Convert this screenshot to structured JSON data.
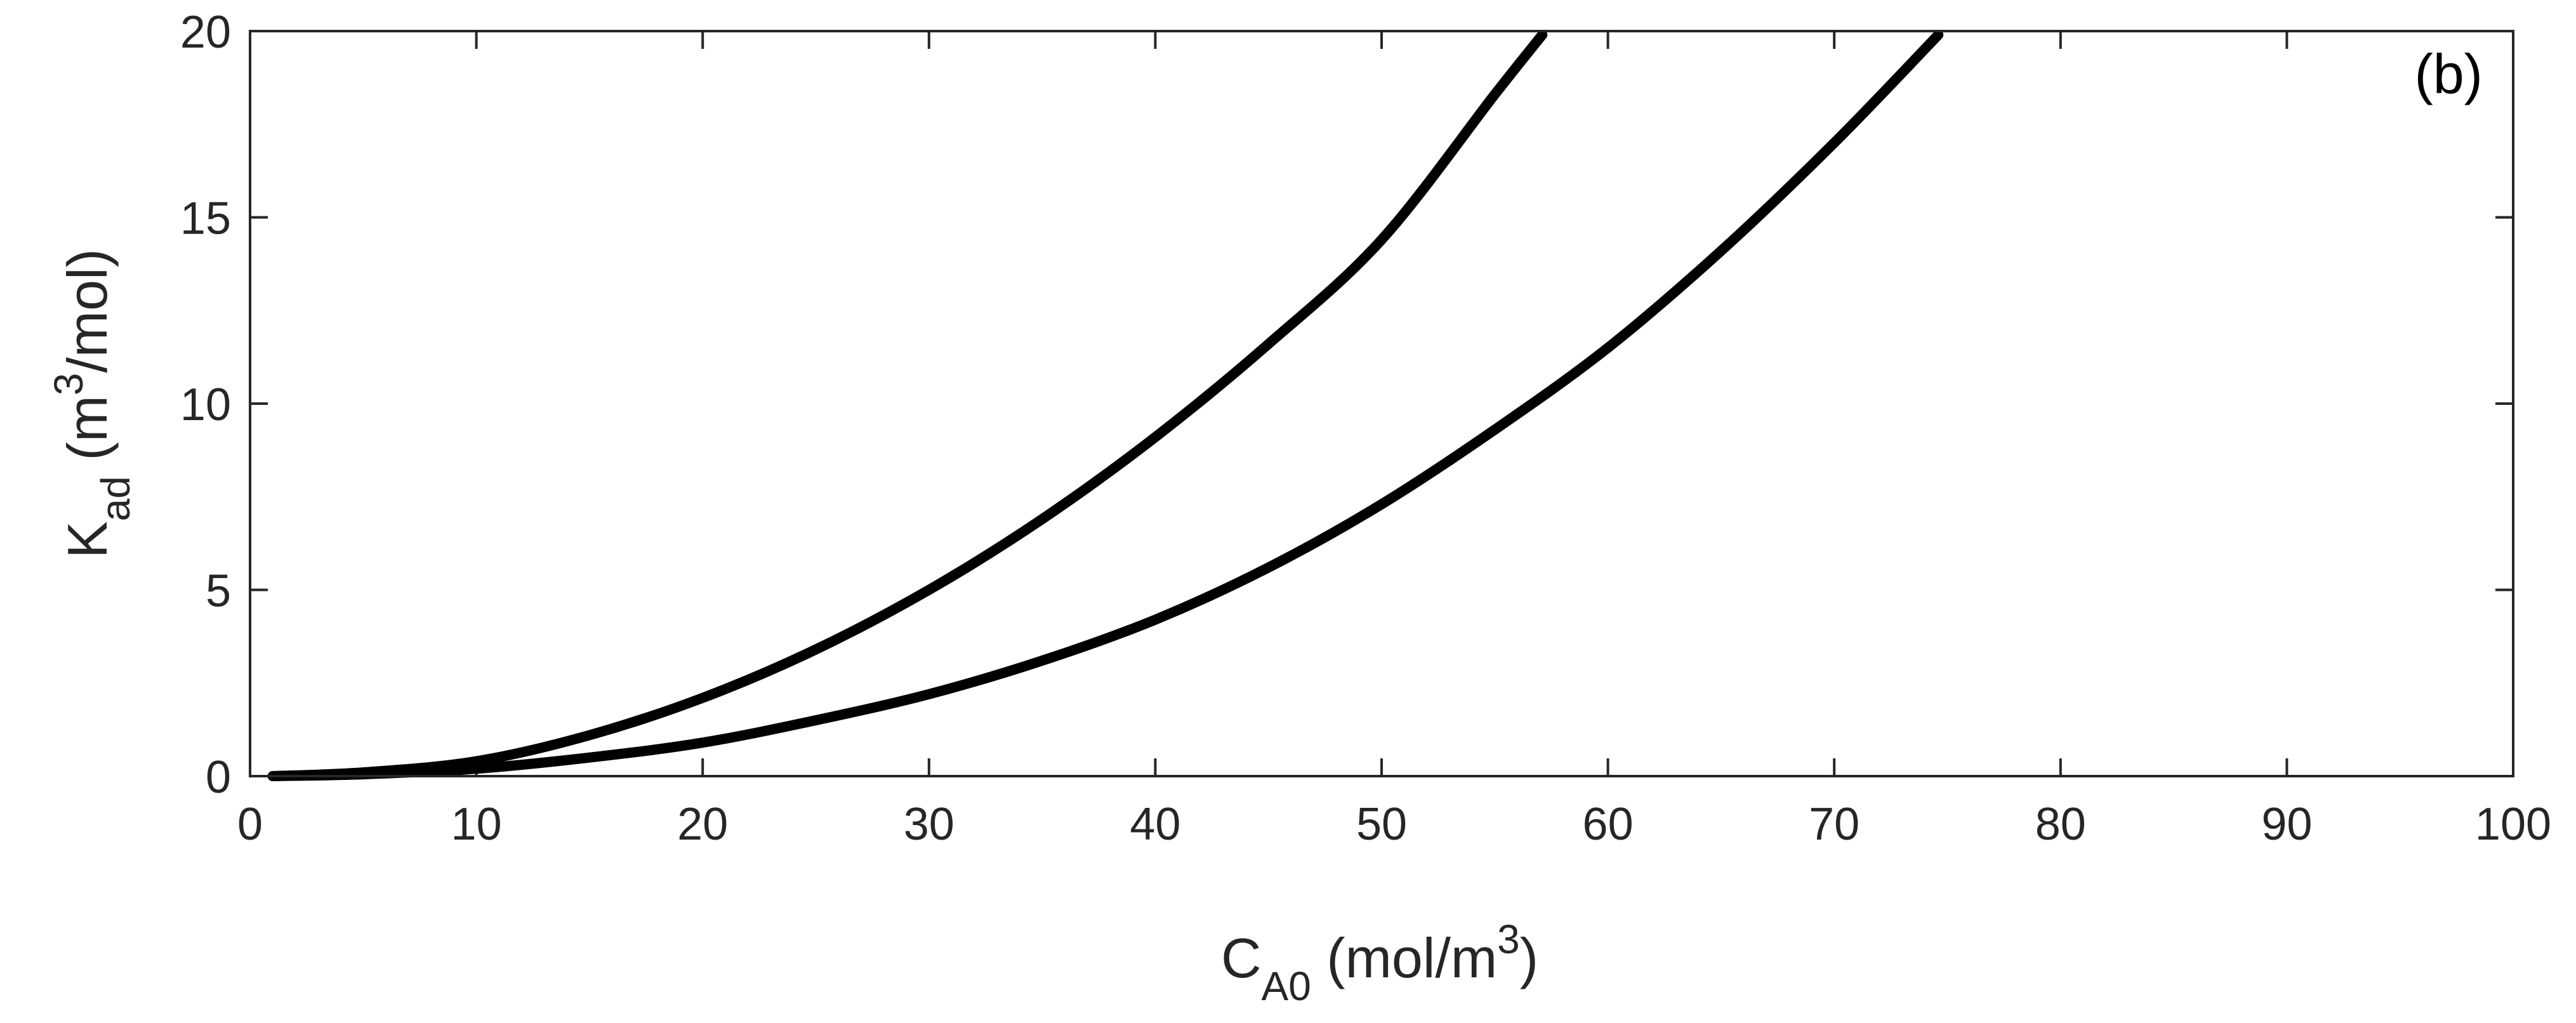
{
  "chart_data": {
    "type": "line",
    "panel_label": "(b)",
    "xlabel": {
      "main": "C",
      "sub": "A0",
      "units_pre": " (mol/m",
      "units_sup": "3",
      "units_post": ")"
    },
    "ylabel": {
      "main": "K",
      "sub": "ad",
      "units_pre": " (m",
      "units_sup": "3",
      "units_post": "/mol)"
    },
    "xlim": [
      0,
      100
    ],
    "ylim": [
      0,
      20
    ],
    "xticks": [
      0,
      10,
      20,
      30,
      40,
      50,
      60,
      70,
      80,
      90,
      100
    ],
    "yticks": [
      0,
      5,
      10,
      15,
      20
    ],
    "grid": false,
    "series": [
      {
        "name": "curve-1",
        "x": [
          1,
          5,
          10,
          15,
          20,
          25,
          30,
          35,
          40,
          45,
          50,
          55,
          57.1
        ],
        "y": [
          0.0,
          0.1,
          0.4,
          1.1,
          2.1,
          3.4,
          5.0,
          6.9,
          9.1,
          11.6,
          14.4,
          18.3,
          19.9
        ]
      },
      {
        "name": "curve-2",
        "x": [
          1,
          5,
          10,
          15,
          20,
          25,
          30,
          35,
          40,
          45,
          50,
          55,
          60,
          65,
          70,
          74.6
        ],
        "y": [
          0.0,
          0.05,
          0.2,
          0.5,
          0.9,
          1.5,
          2.2,
          3.1,
          4.2,
          5.6,
          7.3,
          9.3,
          11.5,
          14.1,
          17.0,
          19.9
        ]
      }
    ],
    "line_color": "#000000"
  }
}
